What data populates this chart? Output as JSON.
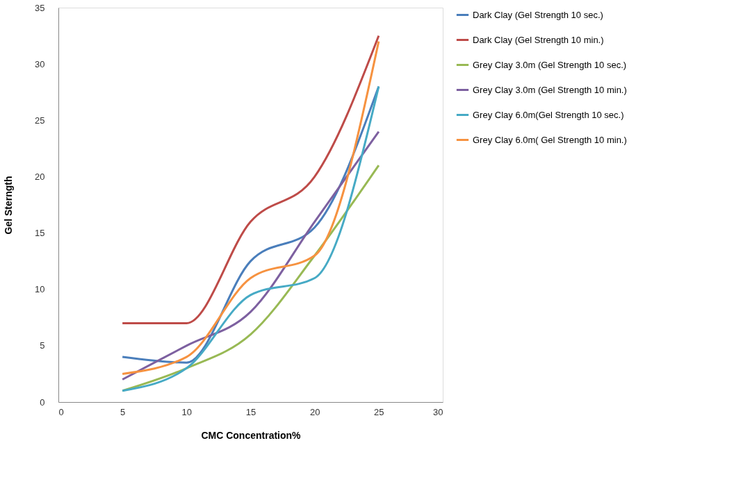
{
  "chart_data": {
    "type": "line",
    "xlabel": "CMC Concentration%",
    "ylabel": "Gel Sterngth",
    "x": [
      5,
      10,
      15,
      20,
      25
    ],
    "series": [
      {
        "name": "Dark Clay (Gel Strength 10 sec.)",
        "color": "#4a7ebb",
        "values": [
          4,
          3.5,
          12.5,
          15.5,
          28
        ]
      },
      {
        "name": "Dark Clay (Gel Strength 10 min.)",
        "color": "#be4b48",
        "values": [
          7,
          7,
          16,
          20,
          32.5
        ]
      },
      {
        "name": "Grey Clay 3.0m (Gel Strength 10 sec.)",
        "color": "#98b954",
        "values": [
          1,
          3,
          6,
          13,
          21
        ]
      },
      {
        "name": "Grey Clay 3.0m (Gel Strength 10 min.)",
        "color": "#7d60a0",
        "values": [
          2,
          5,
          8,
          16,
          24
        ]
      },
      {
        "name": "Grey Clay 6.0m(Gel Strength 10 sec.)",
        "color": "#46aac5",
        "values": [
          1,
          3,
          9.5,
          11,
          28
        ]
      },
      {
        "name": "Grey Clay 6.0m( Gel Strength 10 min.)",
        "color": "#f69240",
        "values": [
          2.5,
          4,
          11,
          13,
          32
        ]
      }
    ],
    "xlim": [
      0,
      30
    ],
    "xticks": [
      0,
      5,
      10,
      15,
      20,
      25,
      30
    ],
    "ylim": [
      0,
      35
    ],
    "yticks": [
      0,
      5,
      10,
      15,
      20,
      25,
      30,
      35
    ],
    "grid": false,
    "legend": "right",
    "marker": "none",
    "line_style": "solid"
  }
}
